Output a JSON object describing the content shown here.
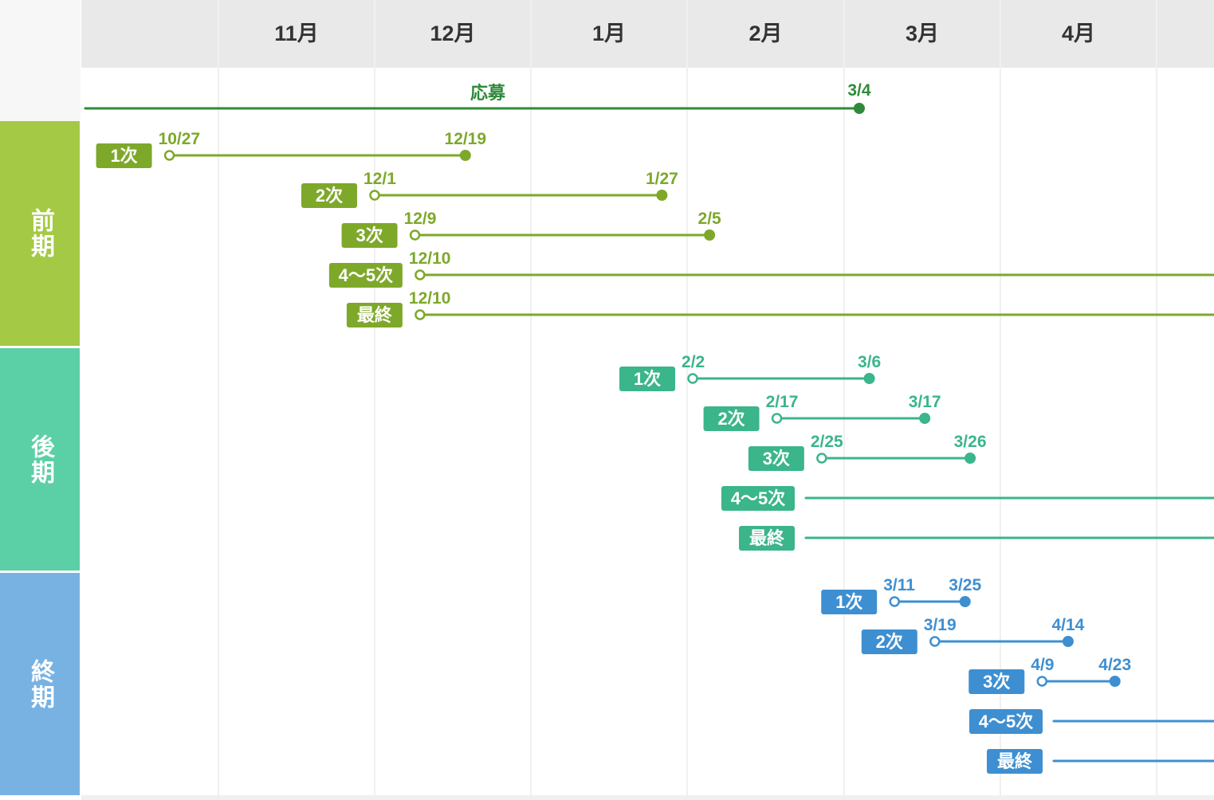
{
  "colors": {
    "application": "#2e8b3a",
    "early": "#7ea82a",
    "mid": "#3bb58a",
    "final": "#3e8fd1",
    "early_band": "#a4c944",
    "mid_band": "#5bcfa5",
    "final_band": "#77b2e3"
  },
  "phases": [
    {
      "key": "early",
      "label": "前期"
    },
    {
      "key": "mid",
      "label": "後期"
    },
    {
      "key": "final",
      "label": "終期"
    }
  ],
  "chart_data": {
    "type": "gantt",
    "months": [
      "11月",
      "12月",
      "1月",
      "2月",
      "3月",
      "4月"
    ],
    "application": {
      "label": "応募",
      "end": "3/4",
      "continues_before": true
    },
    "rounds": [
      {
        "phase": "early",
        "label": "1次",
        "start": "10/27",
        "end": "12/19"
      },
      {
        "phase": "early",
        "label": "2次",
        "start": "12/1",
        "end": "1/27"
      },
      {
        "phase": "early",
        "label": "3次",
        "start": "12/9",
        "end": "2/5"
      },
      {
        "phase": "early",
        "label": "4〜5次",
        "start": "12/10",
        "end": null
      },
      {
        "phase": "early",
        "label": "最終",
        "start": "12/10",
        "end": null
      },
      {
        "phase": "mid",
        "label": "1次",
        "start": "2/2",
        "end": "3/6"
      },
      {
        "phase": "mid",
        "label": "2次",
        "start": "2/17",
        "end": "3/17"
      },
      {
        "phase": "mid",
        "label": "3次",
        "start": "2/25",
        "end": "3/26"
      },
      {
        "phase": "mid",
        "label": "4〜5次",
        "start": null,
        "end": null
      },
      {
        "phase": "mid",
        "label": "最終",
        "start": null,
        "end": null
      },
      {
        "phase": "final",
        "label": "1次",
        "start": "3/11",
        "end": "3/25"
      },
      {
        "phase": "final",
        "label": "2次",
        "start": "3/19",
        "end": "4/14"
      },
      {
        "phase": "final",
        "label": "3次",
        "start": "4/9",
        "end": "4/23"
      },
      {
        "phase": "final",
        "label": "4〜5次",
        "start": null,
        "end": null
      },
      {
        "phase": "final",
        "label": "最終",
        "start": null,
        "end": null
      }
    ]
  }
}
